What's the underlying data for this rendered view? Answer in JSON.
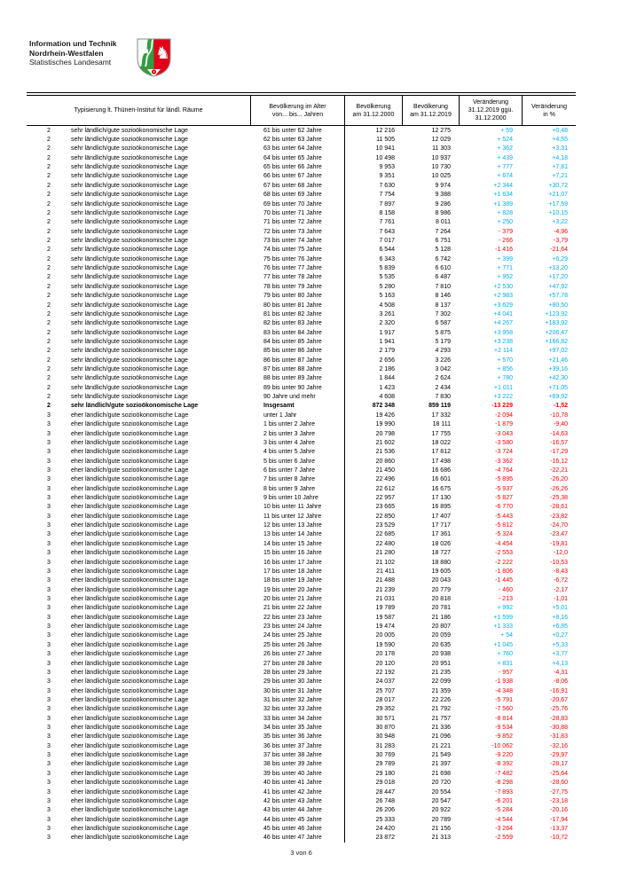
{
  "header": {
    "org": [
      "Information und Technik",
      "Nordrhein-Westfalen",
      "Statistisches Landesamt"
    ],
    "logo": "nrw-coat-of-arms",
    "logo_colors": {
      "green": "#2F9E41",
      "red": "#E2001A",
      "white": "#FFFFFF",
      "outline": "#8a8a8a",
      "rose_center": "#f0c419"
    }
  },
  "table": {
    "columns": [
      "Typisierung lt. Thünen-Institut für ländl. Räume",
      "Bevölkerung im Alter\nvon... bis... Jahren",
      "Bevölkerung\nam 31.12.2000",
      "Bevölkerung\nam 31.12.2019",
      "Veränderung\n31.12.2019 ggü.\n31.12.2000",
      "Veränderung\nin %"
    ],
    "colors": {
      "positive": "#00AEEF",
      "negative": "#FF0000",
      "text": "#000000"
    },
    "rows": [
      [
        "2",
        "sehr ländlich/gute sozioökonomische Lage",
        "61 bis unter 62 Jahre",
        "12 216",
        "12 275",
        "+ 59",
        "+0,48"
      ],
      [
        "2",
        "sehr ländlich/gute sozioökonomische Lage",
        "62 bis unter 63 Jahre",
        "11 505",
        "12 029",
        "+ 524",
        "+4,55"
      ],
      [
        "2",
        "sehr ländlich/gute sozioökonomische Lage",
        "63 bis unter 64 Jahre",
        "10 941",
        "11 303",
        "+ 362",
        "+3,31"
      ],
      [
        "2",
        "sehr ländlich/gute sozioökonomische Lage",
        "64 bis unter 65 Jahre",
        "10 498",
        "10 937",
        "+ 439",
        "+4,18"
      ],
      [
        "2",
        "sehr ländlich/gute sozioökonomische Lage",
        "65 bis unter 66 Jahre",
        "9 953",
        "10 730",
        "+ 777",
        "+7,81"
      ],
      [
        "2",
        "sehr ländlich/gute sozioökonomische Lage",
        "66 bis unter 67 Jahre",
        "9 351",
        "10 025",
        "+ 674",
        "+7,21"
      ],
      [
        "2",
        "sehr ländlich/gute sozioökonomische Lage",
        "67 bis unter 68 Jahre",
        "7 630",
        "9 974",
        "+2 344",
        "+30,72"
      ],
      [
        "2",
        "sehr ländlich/gute sozioökonomische Lage",
        "68 bis unter 69 Jahre",
        "7 754",
        "9 388",
        "+1 634",
        "+21,07"
      ],
      [
        "2",
        "sehr ländlich/gute sozioökonomische Lage",
        "69 bis unter 70 Jahre",
        "7 897",
        "9 286",
        "+1 389",
        "+17,59"
      ],
      [
        "2",
        "sehr ländlich/gute sozioökonomische Lage",
        "70 bis unter 71 Jahre",
        "8 158",
        "8 986",
        "+ 828",
        "+10,15"
      ],
      [
        "2",
        "sehr ländlich/gute sozioökonomische Lage",
        "71 bis unter 72 Jahre",
        "7 761",
        "8 011",
        "+ 250",
        "+3,22"
      ],
      [
        "2",
        "sehr ländlich/gute sozioökonomische Lage",
        "72 bis unter 73 Jahre",
        "7 643",
        "7 264",
        "- 379",
        "-4,96"
      ],
      [
        "2",
        "sehr ländlich/gute sozioökonomische Lage",
        "73 bis unter 74 Jahre",
        "7 017",
        "6 751",
        "- 266",
        "-3,79"
      ],
      [
        "2",
        "sehr ländlich/gute sozioökonomische Lage",
        "74 bis unter 75 Jahre",
        "6 544",
        "5 128",
        "-1 416",
        "-21,64"
      ],
      [
        "2",
        "sehr ländlich/gute sozioökonomische Lage",
        "75 bis unter 76 Jahre",
        "6 343",
        "6 742",
        "+ 399",
        "+6,29"
      ],
      [
        "2",
        "sehr ländlich/gute sozioökonomische Lage",
        "76 bis unter 77 Jahre",
        "5 839",
        "6 610",
        "+ 771",
        "+13,20"
      ],
      [
        "2",
        "sehr ländlich/gute sozioökonomische Lage",
        "77 bis unter 78 Jahre",
        "5 535",
        "6 487",
        "+ 952",
        "+17,20"
      ],
      [
        "2",
        "sehr ländlich/gute sozioökonomische Lage",
        "78 bis unter 79 Jahre",
        "5 280",
        "7 810",
        "+2 530",
        "+47,92"
      ],
      [
        "2",
        "sehr ländlich/gute sozioökonomische Lage",
        "79 bis unter 80 Jahre",
        "5 163",
        "8 146",
        "+2 983",
        "+57,78"
      ],
      [
        "2",
        "sehr ländlich/gute sozioökonomische Lage",
        "80 bis unter 81 Jahre",
        "4 508",
        "8 137",
        "+3 629",
        "+80,50"
      ],
      [
        "2",
        "sehr ländlich/gute sozioökonomische Lage",
        "81 bis unter 82 Jahre",
        "3 261",
        "7 302",
        "+4 041",
        "+123,92"
      ],
      [
        "2",
        "sehr ländlich/gute sozioökonomische Lage",
        "82 bis unter 83 Jahre",
        "2 320",
        "6 587",
        "+4 267",
        "+183,92"
      ],
      [
        "2",
        "sehr ländlich/gute sozioökonomische Lage",
        "83 bis unter 84 Jahre",
        "1 917",
        "5 875",
        "+3 958",
        "+206,47"
      ],
      [
        "2",
        "sehr ländlich/gute sozioökonomische Lage",
        "84 bis unter 85 Jahre",
        "1 941",
        "5 179",
        "+3 238",
        "+166,82"
      ],
      [
        "2",
        "sehr ländlich/gute sozioökonomische Lage",
        "85 bis unter 86 Jahre",
        "2 179",
        "4 293",
        "+2 114",
        "+97,02"
      ],
      [
        "2",
        "sehr ländlich/gute sozioökonomische Lage",
        "86 bis unter 87 Jahre",
        "2 656",
        "3 226",
        "+ 570",
        "+21,46"
      ],
      [
        "2",
        "sehr ländlich/gute sozioökonomische Lage",
        "87 bis unter 88 Jahre",
        "2 186",
        "3 042",
        "+ 856",
        "+39,16"
      ],
      [
        "2",
        "sehr ländlich/gute sozioökonomische Lage",
        "88 bis unter 89 Jahre",
        "1 844",
        "2 624",
        "+ 780",
        "+42,30"
      ],
      [
        "2",
        "sehr ländlich/gute sozioökonomische Lage",
        "89 bis unter 90 Jahre",
        "1 423",
        "2 434",
        "+1 011",
        "+71,05"
      ],
      [
        "2",
        "sehr ländlich/gute sozioökonomische Lage",
        "90 Jahre und mehr",
        "4 608",
        "7 830",
        "+3 222",
        "+69,92"
      ],
      [
        "2",
        "sehr ländlich/gute sozioökonomische Lage",
        "Insgesamt",
        "872 348",
        "859 119",
        "-13 229",
        "-1,52",
        1
      ],
      [
        "3",
        "eher ländlich/gute sozioökonomische Lage",
        "unter 1 Jahr",
        "19 426",
        "17 332",
        "-2 094",
        "-10,78"
      ],
      [
        "3",
        "eher ländlich/gute sozioökonomische Lage",
        "1 bis unter 2 Jahre",
        "19 990",
        "18 111",
        "-1 879",
        "-9,40"
      ],
      [
        "3",
        "eher ländlich/gute sozioökonomische Lage",
        "2 bis unter 3 Jahre",
        "20 798",
        "17 755",
        "-3 043",
        "-14,63"
      ],
      [
        "3",
        "eher ländlich/gute sozioökonomische Lage",
        "3 bis unter 4 Jahre",
        "21 602",
        "18 022",
        "-3 580",
        "-16,57"
      ],
      [
        "3",
        "eher ländlich/gute sozioökonomische Lage",
        "4 bis unter 5 Jahre",
        "21 536",
        "17 812",
        "-3 724",
        "-17,29"
      ],
      [
        "3",
        "eher ländlich/gute sozioökonomische Lage",
        "5 bis unter 6 Jahre",
        "20 860",
        "17 498",
        "-3 362",
        "-16,12"
      ],
      [
        "3",
        "eher ländlich/gute sozioökonomische Lage",
        "6 bis unter 7 Jahre",
        "21 450",
        "16 686",
        "-4 764",
        "-22,21"
      ],
      [
        "3",
        "eher ländlich/gute sozioökonomische Lage",
        "7 bis unter 8 Jahre",
        "22 496",
        "16 601",
        "-5 895",
        "-26,20"
      ],
      [
        "3",
        "eher ländlich/gute sozioökonomische Lage",
        "8 bis unter 9 Jahre",
        "22 612",
        "16 675",
        "-5 937",
        "-26,26"
      ],
      [
        "3",
        "eher ländlich/gute sozioökonomische Lage",
        "9 bis unter 10 Jahre",
        "22 957",
        "17 130",
        "-5 827",
        "-25,38"
      ],
      [
        "3",
        "eher ländlich/gute sozioökonomische Lage",
        "10 bis unter 11 Jahre",
        "23 665",
        "16 895",
        "-6 770",
        "-28,61"
      ],
      [
        "3",
        "eher ländlich/gute sozioökonomische Lage",
        "11 bis unter 12 Jahre",
        "22 850",
        "17 407",
        "-5 443",
        "-23,82"
      ],
      [
        "3",
        "eher ländlich/gute sozioökonomische Lage",
        "12 bis unter 13 Jahre",
        "23 529",
        "17 717",
        "-5 812",
        "-24,70"
      ],
      [
        "3",
        "eher ländlich/gute sozioökonomische Lage",
        "13 bis unter 14 Jahre",
        "22 685",
        "17 361",
        "-5 324",
        "-23,47"
      ],
      [
        "3",
        "eher ländlich/gute sozioökonomische Lage",
        "14 bis unter 15 Jahre",
        "22 480",
        "18 026",
        "-4 454",
        "-19,81"
      ],
      [
        "3",
        "eher ländlich/gute sozioökonomische Lage",
        "15 bis unter 16 Jahre",
        "21 280",
        "18 727",
        "-2 553",
        "-12,0"
      ],
      [
        "3",
        "eher ländlich/gute sozioökonomische Lage",
        "16 bis unter 17 Jahre",
        "21 102",
        "18 880",
        "-2 222",
        "-10,53"
      ],
      [
        "3",
        "eher ländlich/gute sozioökonomische Lage",
        "17 bis unter 18 Jahre",
        "21 411",
        "19 605",
        "-1 806",
        "-8,43"
      ],
      [
        "3",
        "eher ländlich/gute sozioökonomische Lage",
        "18 bis unter 19 Jahre",
        "21 488",
        "20 043",
        "-1 445",
        "-6,72"
      ],
      [
        "3",
        "eher ländlich/gute sozioökonomische Lage",
        "19 bis unter 20 Jahre",
        "21 239",
        "20 779",
        "- 460",
        "-2,17"
      ],
      [
        "3",
        "eher ländlich/gute sozioökonomische Lage",
        "20 bis unter 21 Jahre",
        "21 031",
        "20 818",
        "- 213",
        "-1,01"
      ],
      [
        "3",
        "eher ländlich/gute sozioökonomische Lage",
        "21 bis unter 22 Jahre",
        "19 789",
        "20 781",
        "+ 992",
        "+5,01"
      ],
      [
        "3",
        "eher ländlich/gute sozioökonomische Lage",
        "22 bis unter 23 Jahre",
        "19 587",
        "21 186",
        "+1 599",
        "+8,16"
      ],
      [
        "3",
        "eher ländlich/gute sozioökonomische Lage",
        "23 bis unter 24 Jahre",
        "19 474",
        "20 807",
        "+1 333",
        "+6,85"
      ],
      [
        "3",
        "eher ländlich/gute sozioökonomische Lage",
        "24 bis unter 25 Jahre",
        "20 005",
        "20 059",
        "+ 54",
        "+0,27"
      ],
      [
        "3",
        "eher ländlich/gute sozioökonomische Lage",
        "25 bis unter 26 Jahre",
        "19 590",
        "20 635",
        "+1 045",
        "+5,33"
      ],
      [
        "3",
        "eher ländlich/gute sozioökonomische Lage",
        "26 bis unter 27 Jahre",
        "20 178",
        "20 938",
        "+ 760",
        "+3,77"
      ],
      [
        "3",
        "eher ländlich/gute sozioökonomische Lage",
        "27 bis unter 28 Jahre",
        "20 120",
        "20 951",
        "+ 831",
        "+4,13"
      ],
      [
        "3",
        "eher ländlich/gute sozioökonomische Lage",
        "28 bis unter 29 Jahre",
        "22 192",
        "21 235",
        "- 957",
        "-4,31"
      ],
      [
        "3",
        "eher ländlich/gute sozioökonomische Lage",
        "29 bis unter 30 Jahre",
        "24 037",
        "22 099",
        "-1 938",
        "-8,06"
      ],
      [
        "3",
        "eher ländlich/gute sozioökonomische Lage",
        "30 bis unter 31 Jahre",
        "25 707",
        "21 359",
        "-4 348",
        "-16,91"
      ],
      [
        "3",
        "eher ländlich/gute sozioökonomische Lage",
        "31 bis unter 32 Jahre",
        "28 017",
        "22 226",
        "-5 791",
        "-20,67"
      ],
      [
        "3",
        "eher ländlich/gute sozioökonomische Lage",
        "32 bis unter 33 Jahre",
        "29 352",
        "21 792",
        "-7 560",
        "-25,76"
      ],
      [
        "3",
        "eher ländlich/gute sozioökonomische Lage",
        "33 bis unter 34 Jahre",
        "30 571",
        "21 757",
        "-8 814",
        "-28,83"
      ],
      [
        "3",
        "eher ländlich/gute sozioökonomische Lage",
        "34 bis unter 35 Jahre",
        "30 870",
        "21 336",
        "-9 534",
        "-30,88"
      ],
      [
        "3",
        "eher ländlich/gute sozioökonomische Lage",
        "35 bis unter 36 Jahre",
        "30 948",
        "21 096",
        "-9 852",
        "-31,83"
      ],
      [
        "3",
        "eher ländlich/gute sozioökonomische Lage",
        "36 bis unter 37 Jahre",
        "31 283",
        "21 221",
        "-10 062",
        "-32,16"
      ],
      [
        "3",
        "eher ländlich/gute sozioökonomische Lage",
        "37 bis unter 38 Jahre",
        "30 769",
        "21 549",
        "-9 220",
        "-29,97"
      ],
      [
        "3",
        "eher ländlich/gute sozioökonomische Lage",
        "38 bis unter 39 Jahre",
        "29 789",
        "21 397",
        "-8 392",
        "-28,17"
      ],
      [
        "3",
        "eher ländlich/gute sozioökonomische Lage",
        "39 bis unter 40 Jahre",
        "29 180",
        "21 698",
        "-7 482",
        "-25,64"
      ],
      [
        "3",
        "eher ländlich/gute sozioökonomische Lage",
        "40 bis unter 41 Jahre",
        "29 018",
        "20 720",
        "-8 298",
        "-28,60"
      ],
      [
        "3",
        "eher ländlich/gute sozioökonomische Lage",
        "41 bis unter 42 Jahre",
        "28 447",
        "20 554",
        "-7 893",
        "-27,75"
      ],
      [
        "3",
        "eher ländlich/gute sozioökonomische Lage",
        "42 bis unter 43 Jahre",
        "26 748",
        "20 547",
        "-6 201",
        "-23,18"
      ],
      [
        "3",
        "eher ländlich/gute sozioökonomische Lage",
        "43 bis unter 44 Jahre",
        "26 206",
        "20 922",
        "-5 284",
        "-20,16"
      ],
      [
        "3",
        "eher ländlich/gute sozioökonomische Lage",
        "44 bis unter 45 Jahre",
        "25 333",
        "20 789",
        "-4 544",
        "-17,94"
      ],
      [
        "3",
        "eher ländlich/gute sozioökonomische Lage",
        "45 bis unter 46 Jahre",
        "24 420",
        "21 156",
        "-3 264",
        "-13,37"
      ],
      [
        "3",
        "eher ländlich/gute sozioökonomische Lage",
        "46 bis unter 47 Jahre",
        "23 872",
        "21 313",
        "-2 559",
        "-10,72"
      ]
    ]
  },
  "footer": {
    "page": "3 von 6"
  }
}
